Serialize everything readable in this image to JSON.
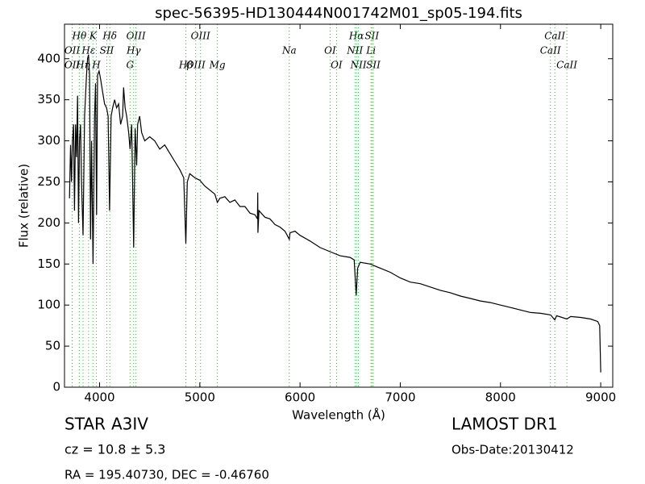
{
  "chart_data": {
    "type": "line",
    "title": "spec-56395-HD130444N001742M01_sp05-194.fits",
    "x_label": "Wavelength (Å)",
    "y_label": "Flux (relative)",
    "xlim": [
      3650,
      9120
    ],
    "ylim": [
      0,
      442
    ],
    "xticks": [
      4000,
      5000,
      6000,
      7000,
      8000,
      9000
    ],
    "yticks": [
      0,
      50,
      100,
      150,
      200,
      250,
      300,
      350,
      400
    ],
    "line_color": "#000000",
    "annotation_color": "#44aa44",
    "x": [
      3700,
      3710,
      3720,
      3730,
      3740,
      3750,
      3760,
      3770,
      3780,
      3790,
      3800,
      3810,
      3820,
      3835,
      3850,
      3870,
      3880,
      3890,
      3900,
      3910,
      3920,
      3935,
      3950,
      3960,
      3970,
      3980,
      3995,
      4010,
      4030,
      4050,
      4070,
      4085,
      4100,
      4115,
      4130,
      4150,
      4170,
      4190,
      4210,
      4230,
      4240,
      4255,
      4270,
      4290,
      4304,
      4320,
      4340,
      4355,
      4370,
      4380,
      4400,
      4420,
      4450,
      4500,
      4550,
      4600,
      4650,
      4700,
      4750,
      4800,
      4840,
      4861,
      4875,
      4900,
      4950,
      5000,
      5050,
      5100,
      5150,
      5175,
      5200,
      5250,
      5300,
      5350,
      5400,
      5450,
      5500,
      5550,
      5575,
      5578,
      5580,
      5590,
      5650,
      5700,
      5750,
      5800,
      5850,
      5893,
      5900,
      5950,
      6000,
      6100,
      6200,
      6300,
      6400,
      6500,
      6540,
      6560,
      6575,
      6600,
      6700,
      6800,
      6900,
      7000,
      7100,
      7200,
      7300,
      7400,
      7500,
      7600,
      7700,
      7800,
      7900,
      8000,
      8100,
      8200,
      8300,
      8400,
      8500,
      8542,
      8560,
      8662,
      8700,
      8800,
      8900,
      8970,
      8990,
      9000
    ],
    "values": [
      230,
      295,
      250,
      300,
      320,
      215,
      320,
      280,
      355,
      200,
      300,
      320,
      250,
      185,
      330,
      380,
      400,
      405,
      380,
      180,
      300,
      150,
      330,
      370,
      210,
      380,
      385,
      375,
      360,
      345,
      340,
      330,
      215,
      330,
      340,
      350,
      340,
      345,
      320,
      330,
      365,
      340,
      330,
      310,
      290,
      320,
      170,
      315,
      270,
      320,
      330,
      310,
      300,
      305,
      300,
      290,
      295,
      285,
      275,
      265,
      255,
      175,
      250,
      260,
      255,
      252,
      245,
      240,
      235,
      225,
      230,
      232,
      225,
      228,
      220,
      220,
      212,
      210,
      205,
      237,
      188,
      215,
      207,
      205,
      198,
      195,
      190,
      180,
      188,
      190,
      185,
      178,
      170,
      165,
      160,
      158,
      155,
      112,
      145,
      152,
      150,
      145,
      140,
      133,
      128,
      126,
      122,
      118,
      115,
      111,
      108,
      105,
      103,
      100,
      97,
      94,
      91,
      90,
      88,
      82,
      87,
      83,
      86,
      85,
      83,
      80,
      75,
      18
    ],
    "annotations": [
      {
        "label": "Hθ",
        "x": 3798
      },
      {
        "label": "K",
        "x": 3934
      },
      {
        "label": "Hδ",
        "x": 4102
      },
      {
        "label": "OIII",
        "x": 4363
      },
      {
        "label": "OIII",
        "x": 5007
      },
      {
        "label": "Hα",
        "x": 6563
      },
      {
        "label": "SII",
        "x": 6717
      },
      {
        "label": "CaII",
        "x": 8542
      },
      {
        "label": "OII",
        "x": 3727
      },
      {
        "label": "Hε",
        "x": 3890
      },
      {
        "label": "SII",
        "x": 4072
      },
      {
        "label": "Hγ",
        "x": 4340
      },
      {
        "label": "Na",
        "x": 5893
      },
      {
        "label": "OI",
        "x": 6300
      },
      {
        "label": "NII",
        "x": 6548
      },
      {
        "label": "Li",
        "x": 6708
      },
      {
        "label": "CaII",
        "x": 8498
      },
      {
        "label": "OII",
        "x": 3727
      },
      {
        "label": "Hη",
        "x": 3835
      },
      {
        "label": "H",
        "x": 3968
      },
      {
        "label": "G",
        "x": 4304
      },
      {
        "label": "Hβ",
        "x": 4861
      },
      {
        "label": "OIII",
        "x": 4959
      },
      {
        "label": "Mg",
        "x": 5175
      },
      {
        "label": "OI",
        "x": 6364
      },
      {
        "label": "NII",
        "x": 6583
      },
      {
        "label": "SII",
        "x": 6731
      },
      {
        "label": "CaII",
        "x": 8662
      }
    ]
  },
  "info": {
    "class": "STAR",
    "subclass": "A3IV",
    "cz": "cz = 10.8 ± 5.3",
    "coords": "RA = 195.40730, DEC = -0.46760",
    "survey": "LAMOST DR1",
    "obs_date": "Obs-Date:20130412"
  }
}
